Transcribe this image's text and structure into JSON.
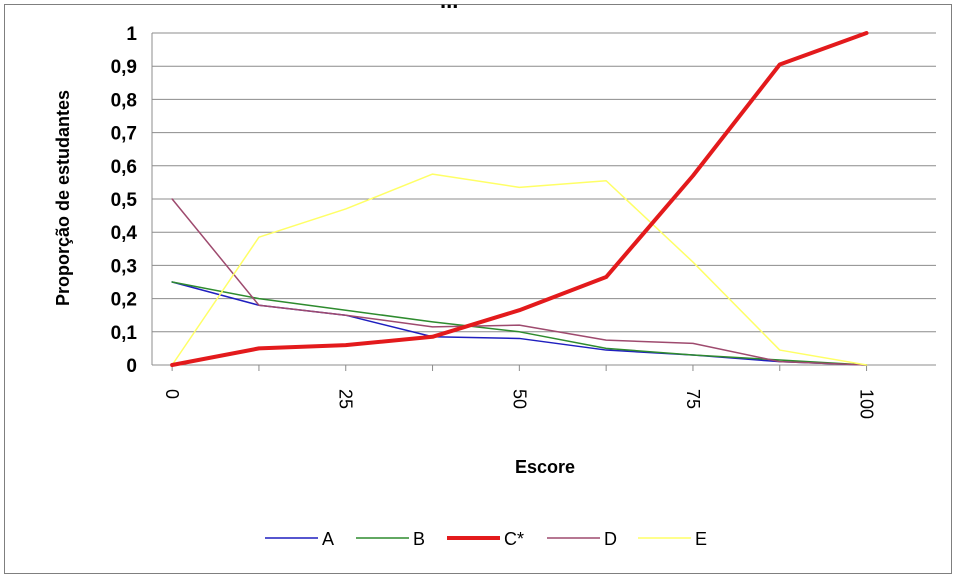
{
  "chart_data": {
    "type": "line",
    "title_fragment": "...",
    "xlabel": "Escore",
    "ylabel": "Proporção de estudantes",
    "x": [
      0,
      12.5,
      25,
      37.5,
      50,
      62.5,
      75,
      87.5,
      100
    ],
    "x_ticks": [
      "0",
      "25",
      "50",
      "75",
      "100"
    ],
    "x_tick_values": [
      0,
      25,
      50,
      75,
      100
    ],
    "y_ticks": [
      "0",
      "0,1",
      "0,2",
      "0,3",
      "0,4",
      "0,5",
      "0,6",
      "0,7",
      "0,8",
      "0,9",
      "1"
    ],
    "y_tick_values": [
      0,
      0.1,
      0.2,
      0.3,
      0.4,
      0.5,
      0.6,
      0.7,
      0.8,
      0.9,
      1
    ],
    "xlim": [
      -2.9,
      110
    ],
    "ylim": [
      0,
      1
    ],
    "grid": true,
    "legend_position": "bottom",
    "series": [
      {
        "name": "A",
        "color": "#1f1fbf",
        "width": 1.5,
        "values": [
          0.25,
          0.18,
          0.15,
          0.085,
          0.08,
          0.045,
          0.03,
          0.01,
          0.0
        ]
      },
      {
        "name": "B",
        "color": "#2e8b2e",
        "width": 1.5,
        "values": [
          0.25,
          0.2,
          0.165,
          0.13,
          0.1,
          0.05,
          0.03,
          0.015,
          0.0
        ]
      },
      {
        "name": "C*",
        "color": "#e31a1c",
        "width": 4,
        "values": [
          0.0,
          0.05,
          0.06,
          0.085,
          0.165,
          0.265,
          0.57,
          0.905,
          1.0
        ]
      },
      {
        "name": "D",
        "color": "#9e4a6e",
        "width": 1.5,
        "values": [
          0.5,
          0.18,
          0.15,
          0.115,
          0.12,
          0.075,
          0.065,
          0.01,
          0.0
        ]
      },
      {
        "name": "E",
        "color": "#ffff66",
        "width": 1.5,
        "values": [
          0.0,
          0.385,
          0.47,
          0.575,
          0.535,
          0.555,
          0.31,
          0.045,
          0.0
        ]
      }
    ]
  }
}
